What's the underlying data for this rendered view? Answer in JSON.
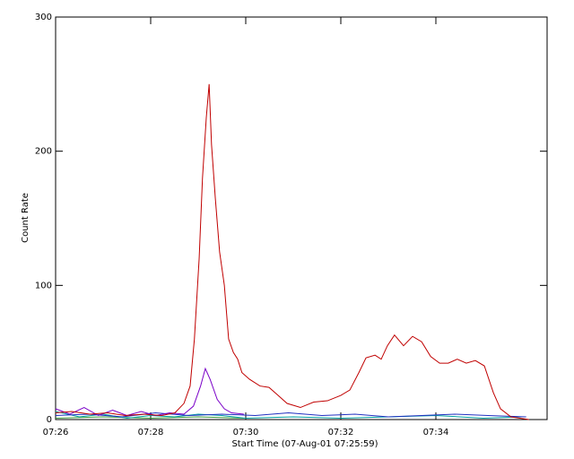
{
  "chart_data": {
    "type": "line",
    "xlabel": "Start Time (07-Aug-01 07:25:59)",
    "ylabel": "Count Rate",
    "xlim": [
      446,
      456.34
    ],
    "ylim": [
      0,
      300
    ],
    "xticks": [
      {
        "value": 446,
        "label": "07:26"
      },
      {
        "value": 448,
        "label": "07:28"
      },
      {
        "value": 450,
        "label": "07:30"
      },
      {
        "value": 452,
        "label": "07:32"
      },
      {
        "value": 454,
        "label": "07:34"
      }
    ],
    "yticks": [
      0,
      100,
      200,
      300
    ],
    "series": [
      {
        "name": "red",
        "color": "#c00000",
        "x": [
          446.0,
          446.34,
          446.72,
          447.09,
          447.47,
          447.85,
          448.23,
          448.51,
          448.7,
          448.83,
          448.92,
          449.02,
          449.09,
          449.17,
          449.23,
          449.28,
          449.36,
          449.45,
          449.55,
          449.64,
          449.74,
          449.83,
          449.92,
          450.08,
          450.3,
          450.49,
          450.68,
          450.87,
          451.15,
          451.43,
          451.72,
          452.0,
          452.19,
          452.38,
          452.53,
          452.72,
          452.85,
          452.98,
          453.13,
          453.32,
          453.51,
          453.7,
          453.89,
          454.08,
          454.26,
          454.45,
          454.64,
          454.83,
          455.02,
          455.21,
          455.36,
          455.58,
          455.96
        ],
        "values": [
          5,
          6,
          4,
          5,
          3,
          4,
          3,
          5,
          12,
          25,
          60,
          120,
          180,
          225,
          250,
          205,
          165,
          125,
          100,
          60,
          50,
          45,
          35,
          30,
          25,
          24,
          18,
          12,
          9,
          13,
          14,
          18,
          22,
          35,
          46,
          48,
          45,
          55,
          63,
          55,
          62,
          58,
          47,
          42,
          42,
          45,
          42,
          44,
          40,
          20,
          8,
          2,
          0
        ]
      },
      {
        "name": "purple",
        "color": "#7a00c8",
        "x": [
          446.0,
          446.3,
          446.6,
          446.9,
          447.2,
          447.5,
          447.8,
          448.1,
          448.4,
          448.7,
          448.9,
          449.05,
          449.15,
          449.25,
          449.4,
          449.55,
          449.7,
          449.96
        ],
        "values": [
          8,
          4,
          9,
          3,
          7,
          3,
          6,
          3,
          5,
          4,
          10,
          25,
          38,
          30,
          15,
          8,
          5,
          4
        ]
      },
      {
        "name": "blue",
        "color": "#2030c0",
        "x": [
          446.0,
          446.7,
          447.4,
          448.1,
          448.8,
          449.5,
          450.2,
          450.9,
          451.6,
          452.3,
          453.0,
          453.7,
          454.4,
          455.1,
          455.9
        ],
        "values": [
          3,
          4,
          2,
          5,
          3,
          4,
          3,
          5,
          3,
          4,
          2,
          3,
          4,
          3,
          2
        ]
      },
      {
        "name": "cyan",
        "color": "#00a0a0",
        "x": [
          446.0,
          446.5,
          447.0,
          447.5,
          448.0,
          448.5,
          449.0,
          449.5,
          450.0,
          451.0,
          452.0,
          453.0,
          454.0,
          455.0,
          455.8
        ],
        "values": [
          6,
          2,
          4,
          1,
          3,
          2,
          4,
          3,
          1,
          2,
          1,
          2,
          3,
          1,
          2
        ]
      },
      {
        "name": "green",
        "color": "#3c9a3c",
        "x": [
          446.0,
          447.0,
          448.0,
          449.0,
          449.96
        ],
        "values": [
          1,
          2,
          1,
          2,
          1
        ]
      }
    ]
  }
}
